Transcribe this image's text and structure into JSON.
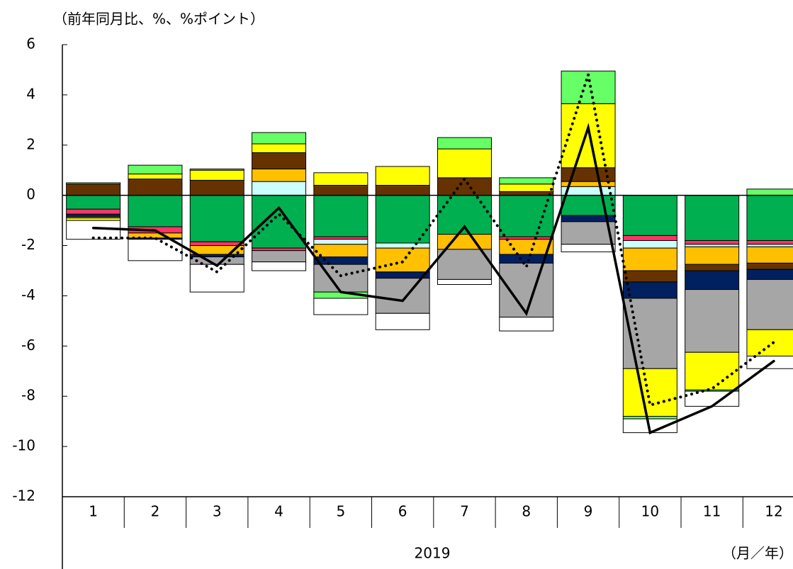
{
  "chart_data": {
    "type": "stacked-bar-line",
    "y_label": "（前年同月比、%、%ポイント）",
    "x_group_label": "2019",
    "x_unit_label": "（月／年）",
    "categories": [
      "1",
      "2",
      "3",
      "4",
      "5",
      "6",
      "7",
      "8",
      "9",
      "10",
      "11",
      "12"
    ],
    "ylim": [
      -12,
      6
    ],
    "yticks": [
      -12,
      -10,
      -8,
      -6,
      -4,
      -2,
      0,
      2,
      4,
      6
    ],
    "series": [
      {
        "color": "#00b050",
        "values": [
          -0.55,
          -1.25,
          -1.85,
          -2.1,
          -1.65,
          -1.9,
          -1.55,
          -1.65,
          -0.8,
          -1.6,
          -1.8,
          -1.8
        ]
      },
      {
        "color": "#ff3366",
        "values": [
          -0.2,
          -0.25,
          -0.15,
          -0.1,
          -0.1,
          0,
          0,
          -0.1,
          0,
          -0.2,
          -0.15,
          -0.15
        ]
      },
      {
        "color": "#ccffff",
        "values": [
          0,
          0,
          0,
          0.55,
          -0.2,
          -0.2,
          0,
          0,
          0.35,
          -0.3,
          -0.1,
          -0.1
        ]
      },
      {
        "color": "#ffc000",
        "values": [
          0,
          -0.2,
          -0.35,
          0.5,
          -0.5,
          -0.95,
          -0.6,
          -0.6,
          0.2,
          -0.9,
          -0.7,
          -0.65
        ]
      },
      {
        "color": "#663300",
        "values": [
          0.45,
          0.65,
          0.6,
          0.65,
          0.4,
          0.4,
          0.7,
          0.15,
          0.55,
          -0.45,
          -0.25,
          -0.25
        ]
      },
      {
        "color": "#002060",
        "values": [
          -0.1,
          -0.05,
          -0.1,
          0,
          -0.3,
          -0.25,
          0,
          -0.35,
          -0.25,
          -0.65,
          -0.75,
          -0.4
        ]
      },
      {
        "color": "#a6a6a6",
        "values": [
          -0.05,
          0,
          -0.3,
          -0.45,
          -1.1,
          -1.4,
          -1.2,
          -2.15,
          -0.9,
          -2.8,
          -2.5,
          -2.0
        ]
      },
      {
        "color": "#ffff00",
        "values": [
          -0.1,
          0.2,
          0.4,
          0.35,
          0.5,
          0.75,
          1.15,
          0.3,
          2.55,
          -1.9,
          -1.5,
          -1.05
        ]
      },
      {
        "color": "#66ff66",
        "values": [
          0.05,
          0.35,
          0.05,
          0.45,
          -0.25,
          0,
          0.45,
          0.25,
          1.3,
          -0.1,
          -0.05,
          0.25
        ]
      },
      {
        "color": "#ffffff",
        "values": [
          -0.75,
          -0.85,
          -1.1,
          -0.35,
          -0.65,
          -0.65,
          -0.2,
          -0.55,
          -0.3,
          -0.55,
          -0.6,
          -0.5
        ]
      }
    ],
    "lines": [
      {
        "color": "#000000",
        "style": "solid",
        "values": [
          -1.3,
          -1.4,
          -2.8,
          -0.5,
          -3.85,
          -4.2,
          -1.25,
          -4.7,
          2.7,
          -9.45,
          -8.4,
          -6.6
        ]
      },
      {
        "color": "#000000",
        "style": "dotted",
        "values": [
          -1.7,
          -1.7,
          -3.05,
          -0.75,
          -3.2,
          -2.65,
          0.65,
          -2.85,
          4.8,
          -8.35,
          -7.7,
          -5.85
        ]
      }
    ]
  }
}
